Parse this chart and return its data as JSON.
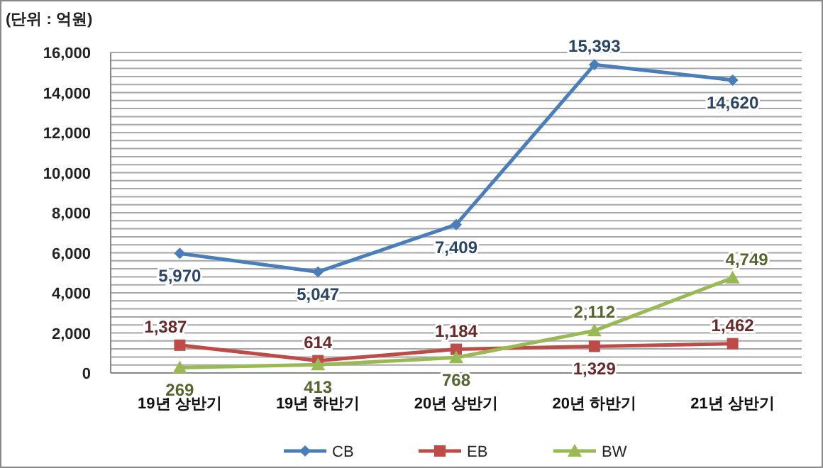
{
  "chart_data": {
    "type": "line",
    "subtitle": "(단위 : 억원)",
    "categories": [
      "19년 상반기",
      "19년 하반기",
      "20년 상반기",
      "20년 하반기",
      "21년 상반기"
    ],
    "ylim": [
      0,
      16000
    ],
    "yticks": [
      0,
      {
        "value": 400,
        "label": null
      },
      {
        "value": 800,
        "label": null
      },
      {
        "value": 1200,
        "label": null
      },
      {
        "value": 1600,
        "label": null
      },
      {
        "value": 2000,
        "label": "2,000"
      },
      {
        "value": 2400,
        "label": null
      },
      {
        "value": 2800,
        "label": null
      },
      {
        "value": 3200,
        "label": null
      },
      {
        "value": 3600,
        "label": null
      },
      {
        "value": 4000,
        "label": "4,000"
      },
      {
        "value": 4400,
        "label": null
      },
      {
        "value": 4800,
        "label": null
      },
      {
        "value": 5200,
        "label": null
      },
      {
        "value": 5600,
        "label": null
      },
      {
        "value": 6000,
        "label": "6,000"
      },
      {
        "value": 6400,
        "label": null
      },
      {
        "value": 6800,
        "label": null
      },
      {
        "value": 7200,
        "label": null
      },
      {
        "value": 7600,
        "label": null
      },
      {
        "value": 8000,
        "label": "8,000"
      },
      {
        "value": 8400,
        "label": null
      },
      {
        "value": 8800,
        "label": null
      },
      {
        "value": 9200,
        "label": null
      },
      {
        "value": 9600,
        "label": null
      },
      {
        "value": 10000,
        "label": "10,000"
      },
      {
        "value": 10400,
        "label": null
      },
      {
        "value": 10800,
        "label": null
      },
      {
        "value": 11200,
        "label": null
      },
      {
        "value": 11600,
        "label": null
      },
      {
        "value": 12000,
        "label": "12,000"
      },
      {
        "value": 12400,
        "label": null
      },
      {
        "value": 12800,
        "label": null
      },
      {
        "value": 13200,
        "label": null
      },
      {
        "value": 13600,
        "label": null
      },
      {
        "value": 14000,
        "label": "14,000"
      },
      {
        "value": 14400,
        "label": null
      },
      {
        "value": 14800,
        "label": null
      },
      {
        "value": 15200,
        "label": null
      },
      {
        "value": 15600,
        "label": null
      },
      {
        "value": 16000,
        "label": "16,000"
      }
    ],
    "grid": "y",
    "legend": "bottom",
    "series": [
      {
        "name": "CB",
        "color": "#4a7ebb",
        "marker": "diamond",
        "values": [
          5970,
          5047,
          7409,
          15393,
          14620
        ],
        "value_labels": [
          "5,970",
          "5,047",
          "7,409",
          "15,393",
          "14,620"
        ]
      },
      {
        "name": "EB",
        "color": "#be4b48",
        "marker": "square",
        "values": [
          1387,
          614,
          1184,
          1329,
          1462
        ],
        "value_labels": [
          "1,387",
          "614",
          "1,184",
          "1,329",
          "1,462"
        ]
      },
      {
        "name": "BW",
        "color": "#98b954",
        "marker": "triangle",
        "values": [
          269,
          413,
          768,
          2112,
          4749
        ],
        "value_labels": [
          "269",
          "413",
          "768",
          "2,112",
          "4,749"
        ]
      }
    ]
  }
}
